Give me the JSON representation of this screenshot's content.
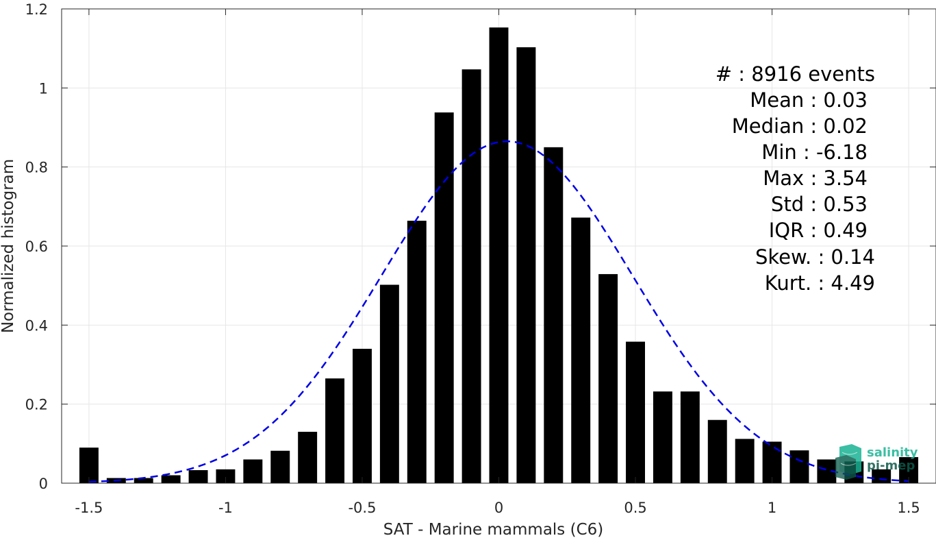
{
  "chart_data": {
    "type": "bar",
    "xlabel": "SAT - Marine mammals (C6)",
    "ylabel": "Normalized histogram",
    "xlim": [
      -1.6,
      1.6
    ],
    "ylim": [
      0,
      1.2
    ],
    "xticks": [
      -1.5,
      -1,
      -0.5,
      0,
      0.5,
      1,
      1.5
    ],
    "xtick_labels": [
      "-1.5",
      "-1",
      "-0.5",
      "0",
      "0.5",
      "1",
      "1.5"
    ],
    "yticks": [
      0,
      0.2,
      0.4,
      0.6,
      0.8,
      1,
      1.2
    ],
    "ytick_labels": [
      "0",
      "0.2",
      "0.4",
      "0.6",
      "0.8",
      "1",
      "1.2"
    ],
    "grid": true,
    "bar_color": "#000000",
    "bar_width": 0.07,
    "x": [
      -1.5,
      -1.4,
      -1.3,
      -1.2,
      -1.1,
      -1.0,
      -0.9,
      -0.8,
      -0.7,
      -0.6,
      -0.5,
      -0.4,
      -0.3,
      -0.2,
      -0.1,
      0.0,
      0.1,
      0.2,
      0.3,
      0.4,
      0.5,
      0.6,
      0.7,
      0.8,
      0.9,
      1.0,
      1.1,
      1.2,
      1.3,
      1.4,
      1.5
    ],
    "values": [
      0.09,
      0.013,
      0.013,
      0.02,
      0.033,
      0.035,
      0.06,
      0.082,
      0.13,
      0.265,
      0.34,
      0.502,
      0.664,
      0.938,
      1.047,
      1.153,
      1.103,
      0.85,
      0.672,
      0.529,
      0.358,
      0.232,
      0.232,
      0.16,
      0.112,
      0.105,
      0.083,
      0.06,
      0.055,
      0.035,
      0.066
    ],
    "fit": {
      "type": "gaussian",
      "mean": 0.03,
      "std": 0.46,
      "peak": 0.865,
      "x_range": [
        -1.5,
        1.5
      ],
      "color": "#0000e6",
      "style": "dashed"
    },
    "annotations": [
      {
        "name": "count",
        "text": "#  : 8916 events"
      },
      {
        "name": "mean",
        "text": "Mean : 0.03"
      },
      {
        "name": "median",
        "text": "Median : 0.02"
      },
      {
        "name": "min",
        "text": "Min : -6.18"
      },
      {
        "name": "max",
        "text": "Max : 3.54"
      },
      {
        "name": "std",
        "text": "Std : 0.53"
      },
      {
        "name": "iqr",
        "text": "IQR : 0.49"
      },
      {
        "name": "skew",
        "text": "Skew. : 0.14"
      },
      {
        "name": "kurt",
        "text": "Kurt. : 4.49"
      }
    ]
  },
  "logo": {
    "line1": "salinity",
    "line2": "pi-mep",
    "color1": "#1ab394",
    "color2": "#0e5a4a"
  }
}
